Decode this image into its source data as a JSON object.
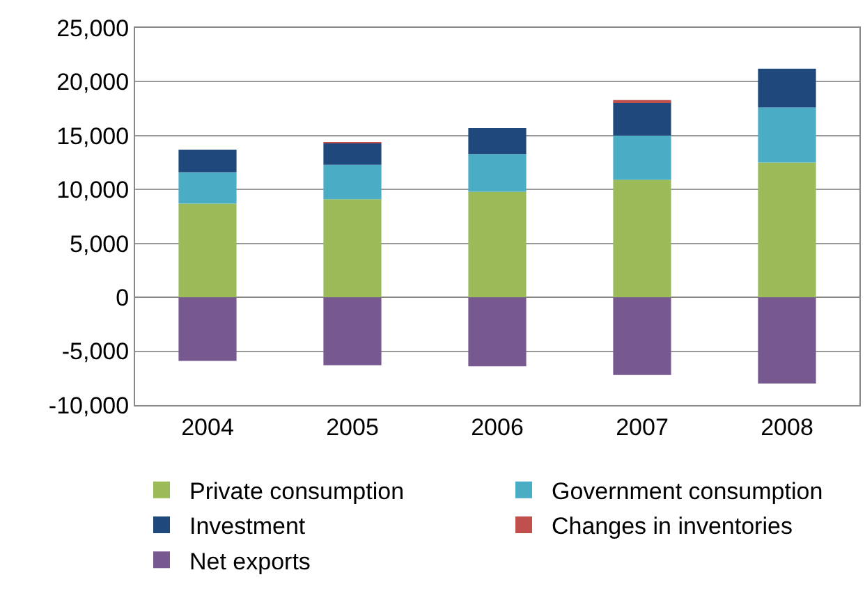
{
  "chart_data": {
    "type": "bar",
    "stacked": true,
    "categories": [
      "2004",
      "2005",
      "2006",
      "2007",
      "2008"
    ],
    "series": [
      {
        "name": "Private consumption",
        "color": "#9bbb59",
        "values": [
          8700,
          9100,
          9800,
          10900,
          12500
        ]
      },
      {
        "name": "Government consumption",
        "color": "#4bacc6",
        "values": [
          2900,
          3200,
          3500,
          4100,
          5100
        ]
      },
      {
        "name": "Investment",
        "color": "#1f497d",
        "values": [
          2100,
          2000,
          2400,
          3100,
          3600
        ]
      },
      {
        "name": "Changes in inventories",
        "color": "#c0504d",
        "values": [
          0,
          100,
          0,
          200,
          0
        ]
      },
      {
        "name": "Net exports",
        "color": "#77598f",
        "values": [
          -5900,
          -6300,
          -6400,
          -7200,
          -8000
        ]
      }
    ],
    "ylim": [
      -10000,
      25000
    ],
    "yticks": [
      {
        "value": -10000,
        "label": "-10,000"
      },
      {
        "value": -5000,
        "label": "-5,000"
      },
      0,
      {
        "value": 5000,
        "label": "5,000"
      },
      {
        "value": 10000,
        "label": "10,000"
      },
      {
        "value": 15000,
        "label": "15,000"
      },
      {
        "value": 20000,
        "label": "20,000"
      },
      {
        "value": 25000,
        "label": "25,000"
      }
    ],
    "grid": "y",
    "legend": "bottom"
  }
}
